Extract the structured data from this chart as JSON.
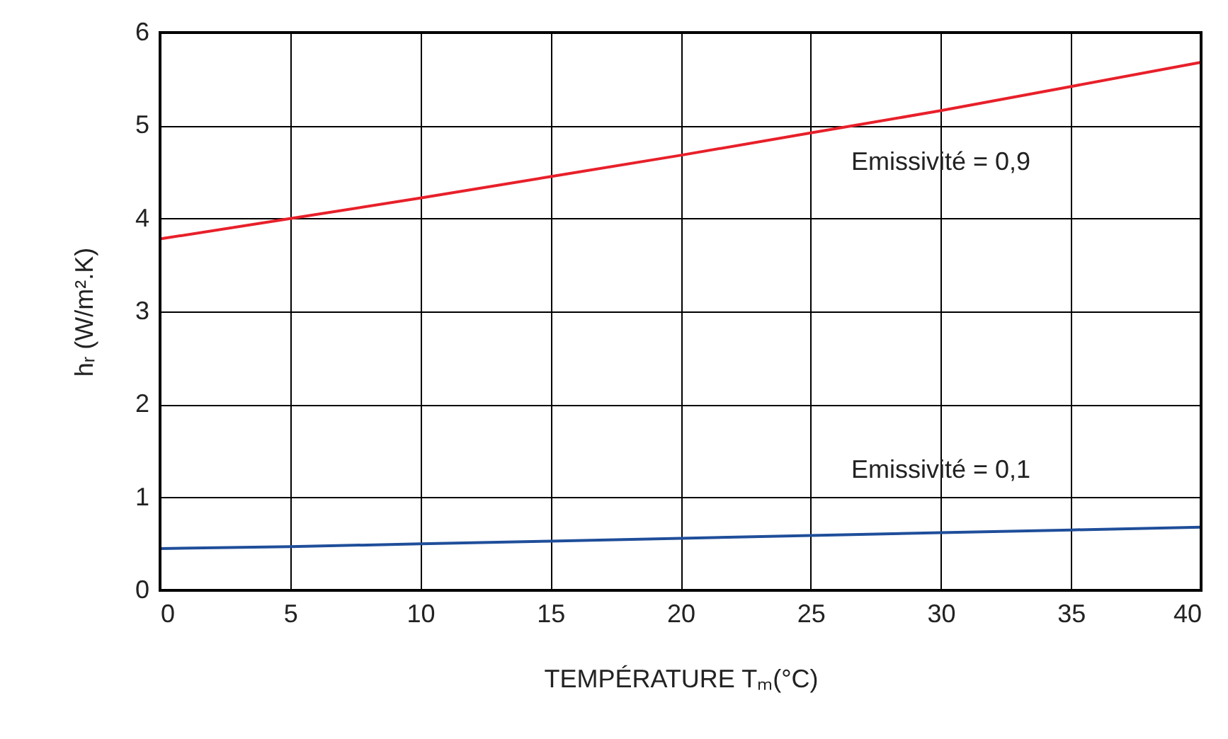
{
  "chart_data": {
    "type": "line",
    "xlabel": "TEMPÉRATURE Tₘ(°C)",
    "ylabel": "hᵣ (W/m².K)",
    "x": [
      0,
      5,
      10,
      15,
      20,
      25,
      30,
      35,
      40
    ],
    "series": [
      {
        "name": "Emissivité = 0,9",
        "color": "#e8202a",
        "values": [
          3.78,
          4.0,
          4.22,
          4.45,
          4.68,
          4.92,
          5.16,
          5.42,
          5.68
        ]
      },
      {
        "name": "Emissivité = 0,1",
        "color": "#1f4e9a",
        "values": [
          0.45,
          0.47,
          0.5,
          0.53,
          0.56,
          0.59,
          0.62,
          0.65,
          0.68
        ]
      }
    ],
    "xlim": [
      0,
      40
    ],
    "xticks": [
      0,
      5,
      10,
      15,
      20,
      25,
      30,
      35,
      40
    ],
    "ylim": [
      0,
      6
    ],
    "yticks": [
      0,
      1,
      2,
      3,
      4,
      5,
      6
    ],
    "grid": true,
    "legend": false,
    "line_style": "solid",
    "marker": "none"
  }
}
